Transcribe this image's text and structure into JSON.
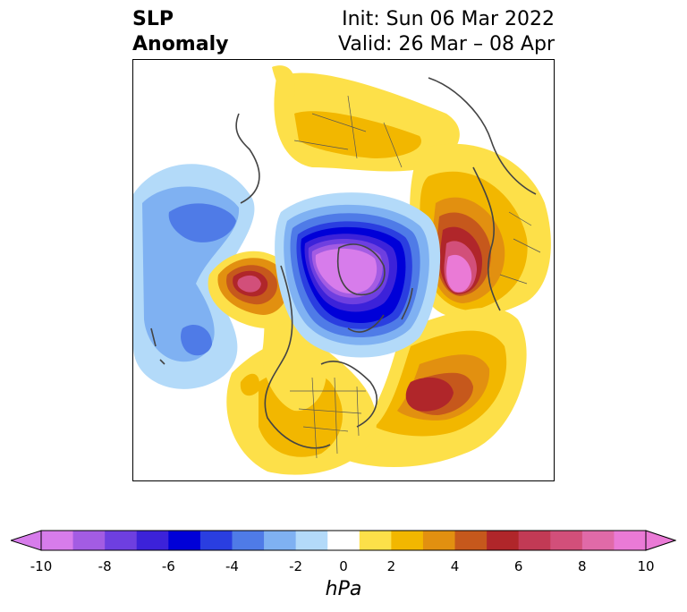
{
  "title": {
    "left_line1": "SLP",
    "left_line2": "Anomaly",
    "right_line1": "Init: Sun 06 Mar 2022",
    "right_line2": "Valid: 26 Mar – 08 Apr"
  },
  "colorbar": {
    "unit": "hPa",
    "levels": [
      -10,
      -9,
      -8,
      -7,
      -6,
      -5,
      -4,
      -3,
      -2,
      -1,
      1,
      2,
      3,
      4,
      5,
      6,
      7,
      8,
      9,
      10
    ],
    "tick_labels": [
      "-10",
      "-8",
      "-6",
      "-4",
      "-2",
      "0",
      "2",
      "4",
      "6",
      "8",
      "10"
    ],
    "colors": [
      "#d77ceb",
      "#a35ce3",
      "#6e3fe0",
      "#3c22d9",
      "#0000d8",
      "#2a3ee0",
      "#4f7be7",
      "#7fb1f2",
      "#b3daf9",
      "#ffffff",
      "#fde049",
      "#f2b700",
      "#e29010",
      "#c6581c",
      "#b0262a",
      "#c23a55",
      "#d24f7a",
      "#e06aa8",
      "#ea7ad6"
    ],
    "extend": "both"
  },
  "map": {
    "projection": "north-polar-stereographic",
    "variable": "SLP anomaly",
    "features": [
      {
        "name": "negative-anomaly-arctic",
        "peak": -10
      },
      {
        "name": "negative-anomaly-north-pacific",
        "peak": -4
      },
      {
        "name": "positive-anomaly-alaska",
        "peak": 9
      },
      {
        "name": "positive-anomaly-scandinavia",
        "peak": 10
      },
      {
        "name": "positive-anomaly-north-atlantic",
        "peak": 6
      },
      {
        "name": "positive-anomaly-north-america",
        "peak": 3
      },
      {
        "name": "positive-anomaly-siberia",
        "peak": 3
      }
    ]
  }
}
